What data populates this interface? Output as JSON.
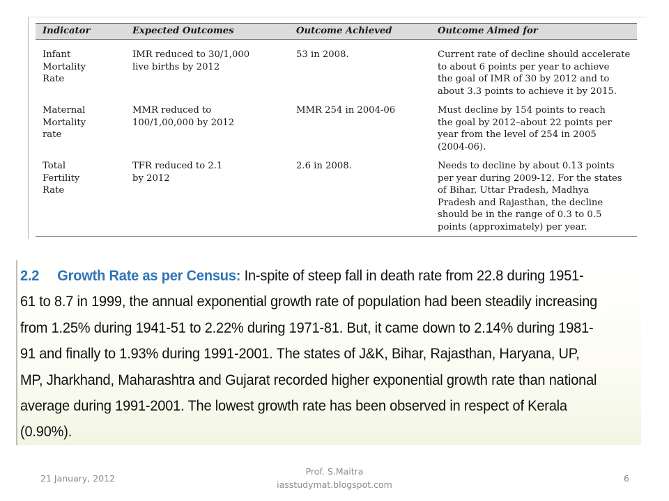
{
  "table": {
    "headers": [
      "Indicator",
      "Expected Outcomes",
      "Outcome Achieved",
      "Outcome Aimed for"
    ],
    "rows": [
      {
        "indicator": [
          "Infant",
          "Mortality",
          "Rate"
        ],
        "expected": [
          "IMR reduced to 30/1,000",
          "live births by 2012"
        ],
        "achieved": "53 in 2008.",
        "aimed": [
          "Current rate of decline should accelerate",
          "to about 6 points per year to achieve",
          "the goal of IMR of 30 by 2012 and to",
          "about 3.3 points to achieve it by 2015."
        ]
      },
      {
        "indicator": [
          "Maternal",
          "Mortality",
          "rate"
        ],
        "expected": [
          "MMR reduced to",
          "100/1,00,000 by 2012"
        ],
        "achieved": "MMR 254 in 2004-06",
        "aimed": [
          "Must decline by 154 points to reach",
          "the goal by 2012–about 22 points per",
          "year from the level of 254 in 2005",
          "(2004-06)."
        ]
      },
      {
        "indicator": [
          "Total",
          "Fertility",
          "Rate"
        ],
        "expected": [
          "TFR reduced to 2.1",
          "by 2012"
        ],
        "achieved": "2.6 in 2008.",
        "aimed": [
          "Needs to decline by about 0.13 points",
          "per year during 2009-12. For the states",
          "of Bihar, Uttar Pradesh, Madhya",
          "Pradesh and Rajasthan, the decline",
          "should be in the range of 0.3 to 0.5",
          "points (approximately) per year."
        ]
      }
    ]
  },
  "census": {
    "number": "2.2",
    "title": "Growth Rate as per Census:",
    "lines": [
      "In-spite of steep fall in death rate from 22.8 during 1951-",
      "61 to 8.7 in 1999, the annual exponential growth rate of population had been steadily increasing",
      "from 1.25% during 1941-51 to 2.22% during 1971-81.  But, it came down to 2.14% during 1981-",
      "91 and finally to 1.93% during 1991-2001.  The states of J&K, Bihar, Rajasthan, Haryana, UP,",
      "MP, Jharkhand, Maharashtra and Gujarat recorded higher exponential growth rate than national",
      "average during 1991-2001.  The lowest growth rate has been observed in respect of Kerala",
      "(0.90%)."
    ]
  },
  "footer": {
    "date": "21 January, 2012",
    "author": "Prof. S.Maitra",
    "site": "iasstudymat.blogspot.com",
    "page": "6"
  }
}
